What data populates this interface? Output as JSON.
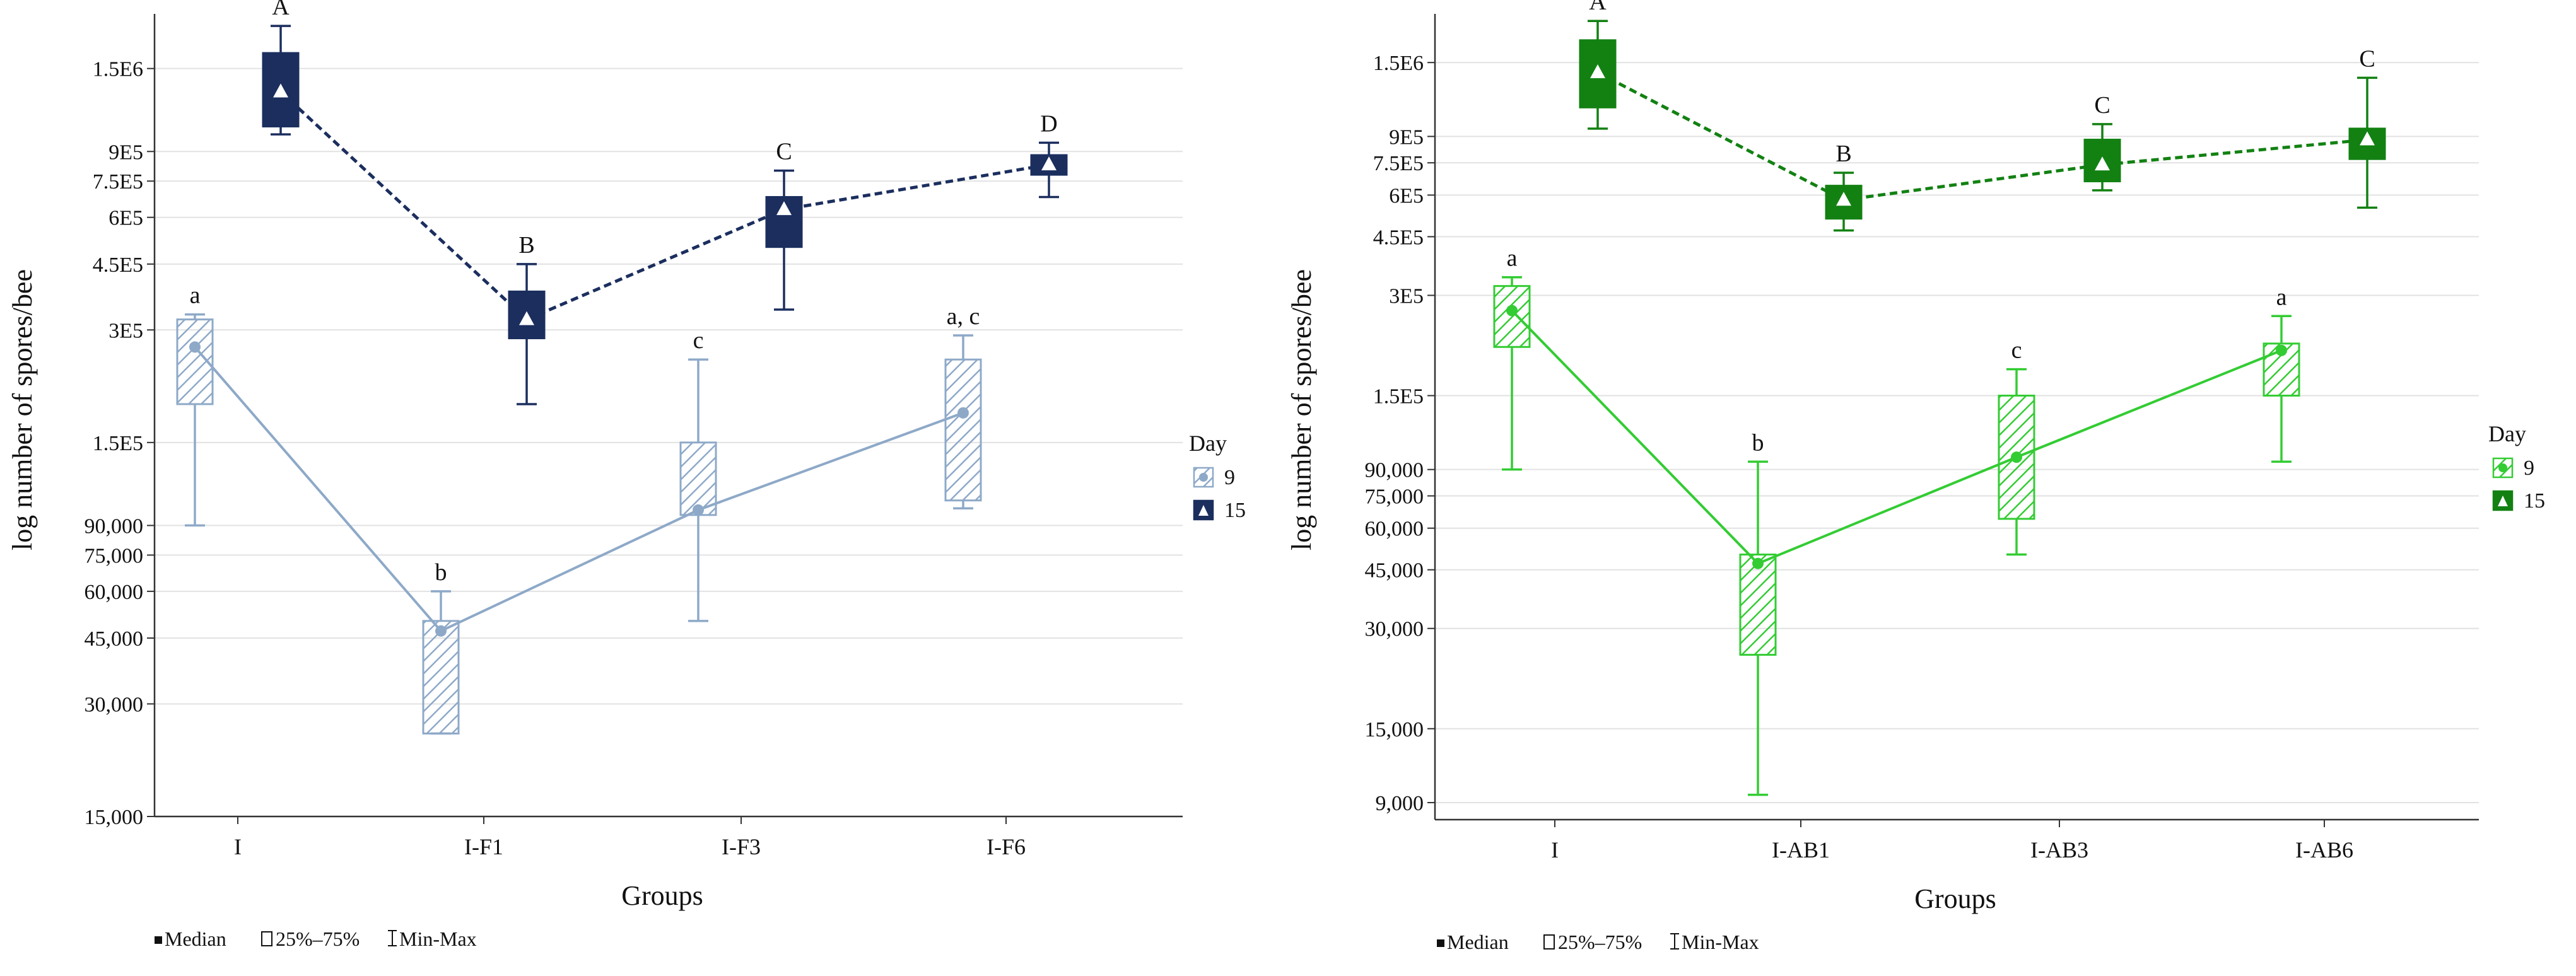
{
  "chart_data": [
    {
      "type": "box",
      "xlabel": "Groups",
      "ylabel": "log number of spores/bee",
      "yscale": "log",
      "ylim": [
        15000,
        2100000
      ],
      "yticks": [
        15000,
        30000,
        45000,
        60000,
        75000,
        90000,
        150000,
        300000,
        450000,
        600000,
        750000,
        900000,
        1500000
      ],
      "yticklabels": [
        "15,000",
        "30,000",
        "45,000",
        "60,000",
        "75,000",
        "90,000",
        "1.5E5",
        "3E5",
        "4.5E5",
        "6E5",
        "7.5E5",
        "9E5",
        "1.5E6"
      ],
      "categories": [
        "I",
        "I-F1",
        "I-F3",
        "I-F6"
      ],
      "legend": {
        "title": "Day",
        "position": "right"
      },
      "series": [
        {
          "name": "9",
          "color": "#8EA9C8",
          "marker": "circle",
          "filled": false,
          "line_style": "solid",
          "median": [
            270000,
            47000,
            99000,
            180000
          ],
          "q1": [
            190000,
            25000,
            96000,
            105000
          ],
          "q3": [
            320000,
            50000,
            150000,
            250000
          ],
          "min": [
            90000,
            25000,
            50000,
            100000
          ],
          "max": [
            330000,
            60000,
            250000,
            290000
          ],
          "letters": [
            "a",
            "b",
            "c",
            "a, c"
          ]
        },
        {
          "name": "15",
          "color": "#1B2E5E",
          "marker": "triangle",
          "filled": true,
          "line_style": "dashed",
          "median": [
            1300000,
            320000,
            630000,
            830000
          ],
          "q1": [
            1050000,
            285000,
            500000,
            780000
          ],
          "q3": [
            1650000,
            380000,
            680000,
            880000
          ],
          "min": [
            1000000,
            190000,
            340000,
            680000
          ],
          "max": [
            1950000,
            450000,
            800000,
            950000
          ],
          "letters": [
            "A",
            "B",
            "C",
            "D"
          ]
        }
      ],
      "footer_legend": [
        "Median",
        "25%–75%",
        "Min-Max"
      ]
    },
    {
      "type": "box",
      "xlabel": "Groups",
      "ylabel": "log number of spores/bee",
      "yscale": "log",
      "ylim": [
        8000,
        2100000
      ],
      "yticks": [
        9000,
        15000,
        30000,
        45000,
        60000,
        75000,
        90000,
        150000,
        300000,
        450000,
        600000,
        750000,
        900000,
        1500000
      ],
      "yticklabels": [
        "9,000",
        "15,000",
        "30,000",
        "45,000",
        "60,000",
        "75,000",
        "90,000",
        "1.5E5",
        "3E5",
        "4.5E5",
        "6E5",
        "7.5E5",
        "9E5",
        "1.5E6"
      ],
      "categories": [
        "I",
        "I-AB1",
        "I-AB3",
        "I-AB6"
      ],
      "legend": {
        "title": "Day",
        "position": "right"
      },
      "series": [
        {
          "name": "9",
          "color": "#33CC33",
          "marker": "circle",
          "filled": false,
          "line_style": "solid",
          "median": [
            270000,
            47000,
            98000,
            205000
          ],
          "q1": [
            210000,
            25000,
            64000,
            150000
          ],
          "q3": [
            320000,
            50000,
            150000,
            215000
          ],
          "min": [
            90000,
            9500,
            50000,
            95000
          ],
          "max": [
            340000,
            95000,
            180000,
            260000
          ],
          "letters": [
            "a",
            "b",
            "c",
            "a"
          ]
        },
        {
          "name": "15",
          "color": "#128112",
          "marker": "triangle",
          "filled": true,
          "line_style": "dashed",
          "median": [
            1400000,
            580000,
            740000,
            880000
          ],
          "q1": [
            1100000,
            510000,
            660000,
            770000
          ],
          "q3": [
            1750000,
            640000,
            880000,
            950000
          ],
          "min": [
            950000,
            470000,
            620000,
            550000
          ],
          "max": [
            2000000,
            700000,
            980000,
            1350000
          ],
          "letters": [
            "A",
            "B",
            "C",
            "C"
          ]
        }
      ],
      "footer_legend": [
        "Median",
        "25%–75%",
        "Min-Max"
      ]
    }
  ]
}
